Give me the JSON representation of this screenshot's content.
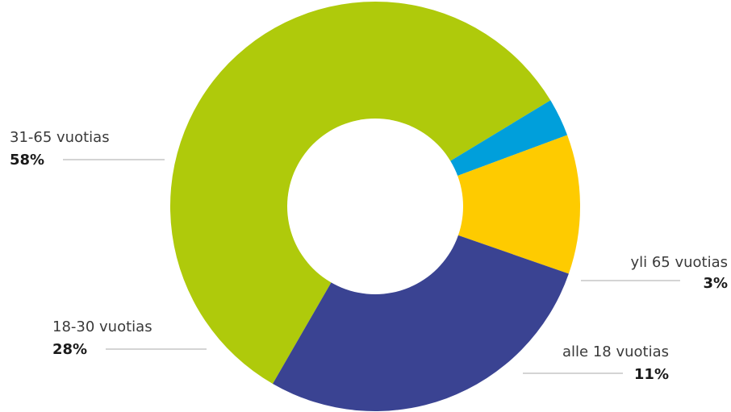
{
  "chart_data": {
    "type": "pie",
    "title": "",
    "slices": [
      {
        "label": "31-65 vuotias",
        "value_label": "58%",
        "value": 58,
        "color": "#afca0b"
      },
      {
        "label": "yli 65 vuotias",
        "value_label": "3%",
        "value": 3,
        "color": "#009fdb"
      },
      {
        "label": "alle 18 vuotias",
        "value_label": "11%",
        "value": 11,
        "color": "#fecb00"
      },
      {
        "label": "18-30 vuotias",
        "value_label": "28%",
        "value": 28,
        "color": "#3a4392"
      }
    ]
  }
}
